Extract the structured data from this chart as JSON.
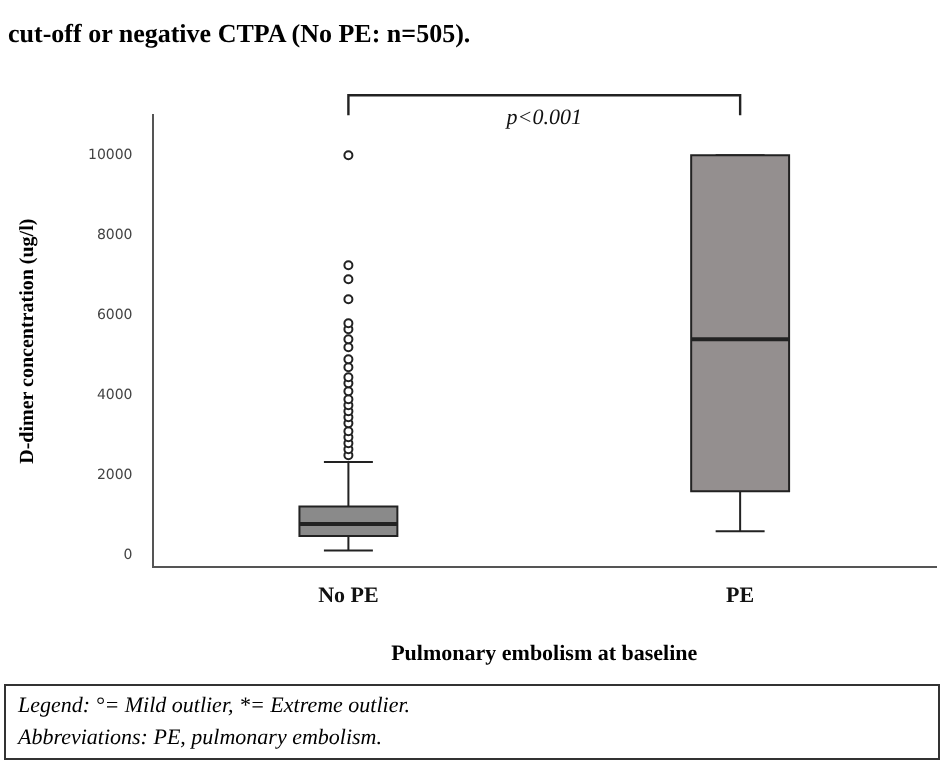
{
  "chart_data": {
    "type": "box",
    "title": "cut-off or negative CTPA (No PE: n=505).",
    "ylabel": "D-dimer concentration (ug/l)",
    "xlabel": "Pulmonary embolism at baseline",
    "categories": [
      "No PE",
      "PE"
    ],
    "boxes": [
      {
        "low": 120,
        "q1": 480,
        "median": 780,
        "q3": 1220,
        "high": 2330,
        "outliers": [
          2500,
          2650,
          2800,
          2950,
          3100,
          3300,
          3450,
          3600,
          3750,
          3900,
          4100,
          4300,
          4450,
          4700,
          4900,
          5200,
          5400,
          5650,
          5800,
          6400,
          6900,
          7250,
          10000
        ]
      },
      {
        "low": 600,
        "q1": 1600,
        "median": 5400,
        "q3": 10000,
        "high": 10000
      }
    ],
    "colors": [
      "#8a8a8a",
      "#948f8f"
    ],
    "ylim": [
      -300,
      11000
    ],
    "yticks": [
      0,
      2000,
      4000,
      6000,
      8000,
      10000
    ],
    "grid": false,
    "legend": false,
    "annotations": [
      "p<0.001",
      "Legend: °= Mild outlier, *= Extreme outlier.",
      "Abbreviations: PE, pulmonary embolism."
    ]
  }
}
